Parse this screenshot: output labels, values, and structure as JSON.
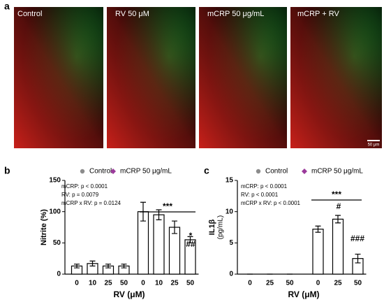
{
  "panel_a": {
    "label": "a",
    "images": [
      "Control",
      "RV 50 μM",
      "mCRP 50 μg/mL",
      "mCRP + RV"
    ],
    "scale_bar": "50 μm"
  },
  "chart_data": [
    {
      "type": "bar",
      "label": "b",
      "ylabel": "Nitrite (%)",
      "xlabel": "RV (μM)",
      "categories": [
        "0",
        "10",
        "25",
        "50",
        "0",
        "10",
        "25",
        "50"
      ],
      "series": [
        {
          "name": "Control",
          "color": "#8c8c8c",
          "marker": "circle",
          "values": [
            13,
            17,
            13,
            13,
            null,
            null,
            null,
            null
          ],
          "errors": [
            3,
            4,
            3,
            3,
            null,
            null,
            null,
            null
          ]
        },
        {
          "name": "mCRP 50 μg/mL",
          "color": "#9b3a9b",
          "marker": "diamond",
          "values": [
            null,
            null,
            null,
            null,
            100,
            95,
            75,
            55
          ],
          "errors": [
            null,
            null,
            null,
            null,
            15,
            8,
            10,
            5
          ]
        }
      ],
      "ylim": [
        0,
        150
      ],
      "yticks": [
        0,
        50,
        100,
        150
      ],
      "stats": [
        "mCRP: p < 0.0001",
        "RV: p = 0.0079",
        "mCRP x RV: p = 0.0124"
      ],
      "annotations": [
        "***",
        "*",
        "##"
      ]
    },
    {
      "type": "bar",
      "label": "c",
      "ylabel": "IL1β",
      "ylabel_sub": "(pg/mL)",
      "xlabel": "RV (μM)",
      "categories": [
        "0",
        "25",
        "50",
        "0",
        "25",
        "50"
      ],
      "series": [
        {
          "name": "Control",
          "color": "#8c8c8c",
          "marker": "circle",
          "values": [
            0,
            0,
            0,
            null,
            null,
            null
          ],
          "errors": [
            0,
            0,
            0,
            null,
            null,
            null
          ]
        },
        {
          "name": "mCRP 50 μg/mL",
          "color": "#9b3a9b",
          "marker": "diamond",
          "values": [
            null,
            null,
            null,
            7.2,
            8.8,
            2.5
          ],
          "errors": [
            null,
            null,
            null,
            0.5,
            0.6,
            0.7
          ]
        }
      ],
      "ylim": [
        0,
        15
      ],
      "yticks": [
        0,
        5,
        10,
        15
      ],
      "stats": [
        "mCRP: p < 0.0001",
        "RV: p < 0.0001",
        "mCRP x RV: p < 0.0001"
      ],
      "annotations": [
        "***",
        "#",
        "###"
      ]
    }
  ]
}
